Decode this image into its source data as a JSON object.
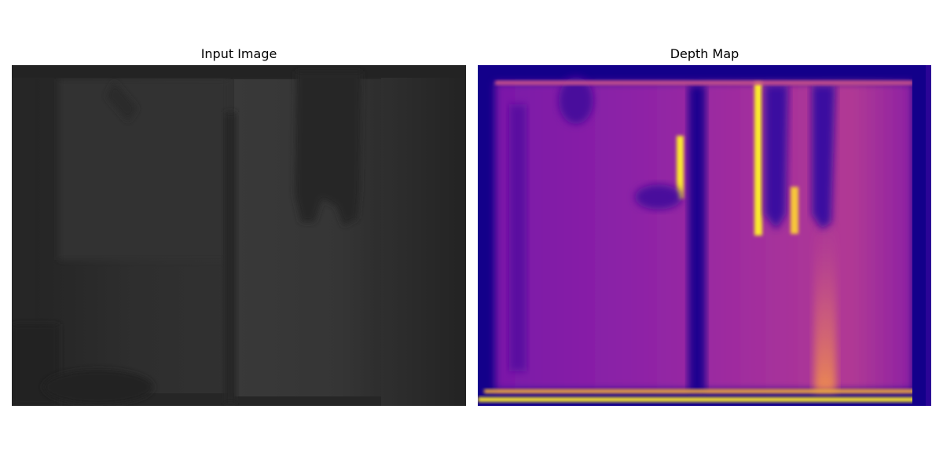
{
  "figure": {
    "panels": [
      {
        "id": "input",
        "title": "Input Image"
      },
      {
        "id": "depth",
        "title": "Depth Map"
      }
    ],
    "colors": {
      "background": "#ffffff",
      "input_dark": "#262626",
      "input_mid": "#303030",
      "input_light": "#383838",
      "depth_dark": "#13008a",
      "depth_purple": "#8a1fa6",
      "depth_magenta": "#b83c90",
      "depth_orange": "#f2914a",
      "depth_yellow": "#fbe92f"
    }
  }
}
